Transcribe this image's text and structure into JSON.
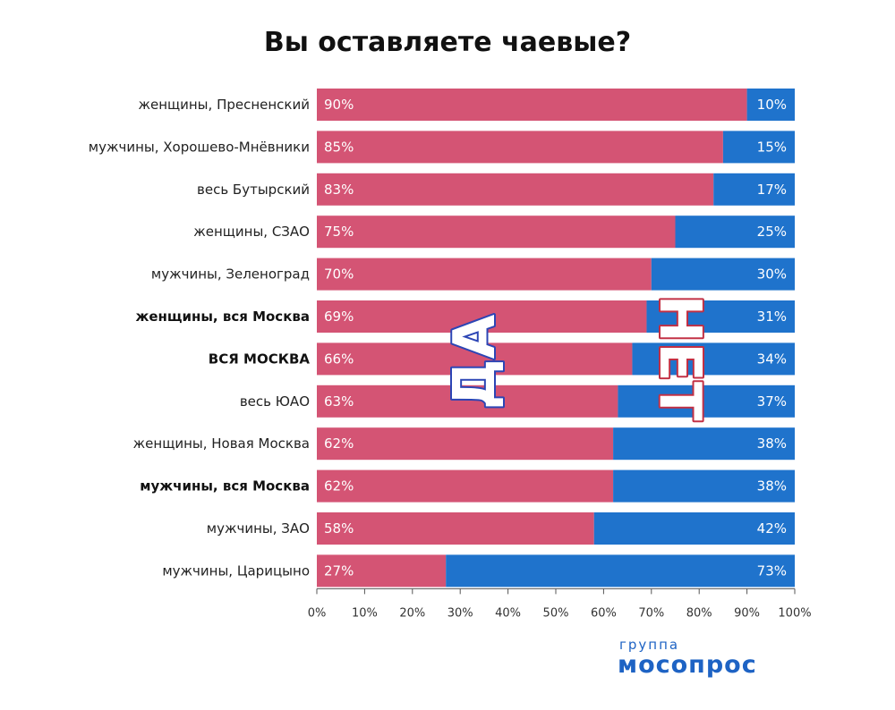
{
  "title": "Вы оставляете чаевые?",
  "logo": {
    "small": "группа",
    "big": "мосопрос"
  },
  "annotations": {
    "yes": "ДА",
    "no": "НЕТ"
  },
  "colors": {
    "yes": "#d45474",
    "no": "#1f73cc",
    "yes_outline": "#2c45b5",
    "no_outline": "#c23044"
  },
  "chart_data": {
    "type": "bar",
    "orientation": "horizontal",
    "stacked": true,
    "categories": [
      "женщины, Пресненский",
      "мужчины, Хорошево-Мнёвники",
      "весь Бутырский",
      "женщины, СЗАО",
      "мужчины, Зеленоград",
      "женщины, вся Москва",
      "ВСЯ МОСКВА",
      "весь ЮАО",
      "женщины, Новая Москва",
      "мужчины, вся Москва",
      "мужчины, ЗАО",
      "мужчины, Царицыно"
    ],
    "bold_categories": [
      "женщины, вся Москва",
      "ВСЯ МОСКВА",
      "мужчины, вся Москва"
    ],
    "series": [
      {
        "name": "ДА",
        "values": [
          90,
          85,
          83,
          75,
          70,
          69,
          66,
          63,
          62,
          62,
          58,
          27
        ]
      },
      {
        "name": "НЕТ",
        "values": [
          10,
          15,
          17,
          25,
          30,
          31,
          34,
          37,
          38,
          38,
          42,
          73
        ]
      }
    ],
    "value_labels": {
      "yes": [
        "90%",
        "85%",
        "83%",
        "75%",
        "70%",
        "69%",
        "66%",
        "63%",
        "62%",
        "62%",
        "58%",
        "27%"
      ],
      "no": [
        "10%",
        "15%",
        "17%",
        "25%",
        "30%",
        "31%",
        "34%",
        "37%",
        "38%",
        "38%",
        "42%",
        "73%"
      ]
    },
    "xlim": [
      0,
      100
    ],
    "xticks": [
      "0%",
      "10%",
      "20%",
      "30%",
      "40%",
      "50%",
      "60%",
      "70%",
      "80%",
      "90%",
      "100%"
    ],
    "legend": "none",
    "grid": false
  }
}
